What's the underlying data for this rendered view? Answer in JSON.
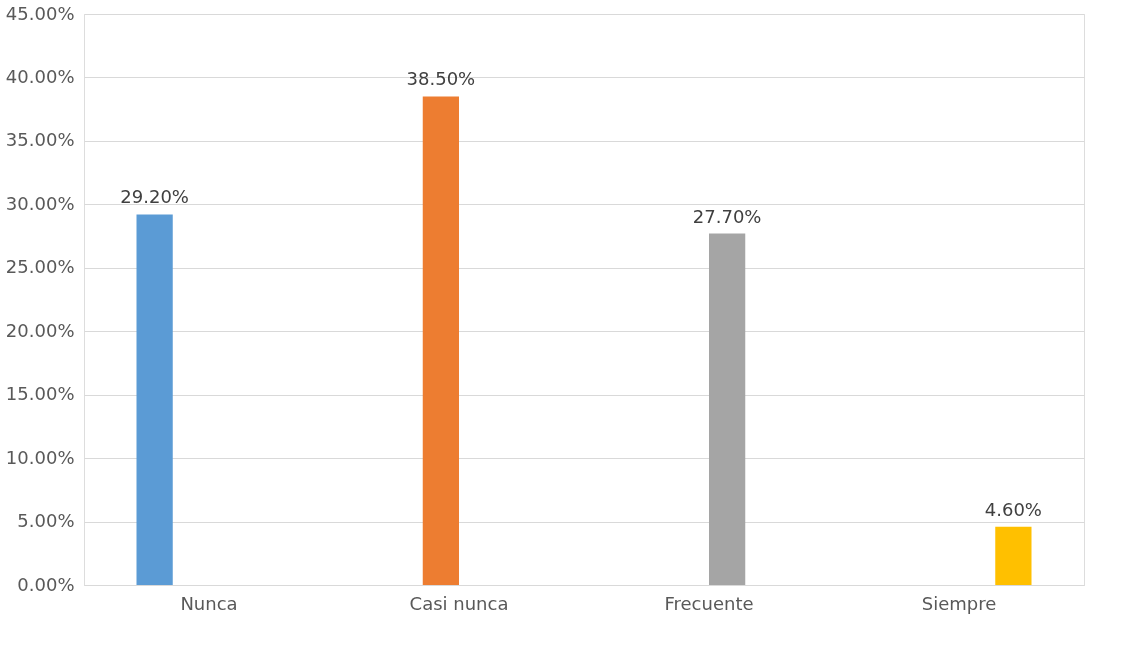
{
  "chart_data": {
    "type": "bar",
    "categories": [
      "Nunca",
      "Casi nunca",
      "Frecuente",
      "Siempre"
    ],
    "series": [
      {
        "color": "#5b9bd5",
        "values": [
          29.2,
          null,
          null,
          null
        ],
        "value_labels": [
          "29.20%",
          null,
          null,
          null
        ]
      },
      {
        "color": "#ed7d31",
        "values": [
          null,
          38.5,
          null,
          null
        ],
        "value_labels": [
          null,
          "38.50%",
          null,
          null
        ]
      },
      {
        "color": "#a5a5a5",
        "values": [
          null,
          null,
          27.7,
          null
        ],
        "value_labels": [
          null,
          null,
          "27.70%",
          null
        ]
      },
      {
        "color": "#ffc000",
        "values": [
          null,
          null,
          null,
          4.6
        ],
        "value_labels": [
          null,
          null,
          null,
          "4.60%"
        ]
      }
    ],
    "ylim": [
      0,
      45
    ],
    "yticks": [
      {
        "value": 0,
        "label": "0.00%"
      },
      {
        "value": 5,
        "label": "5.00%"
      },
      {
        "value": 10,
        "label": "10.00%"
      },
      {
        "value": 15,
        "label": "15.00%"
      },
      {
        "value": 20,
        "label": "20.00%"
      },
      {
        "value": 25,
        "label": "25.00%"
      },
      {
        "value": 30,
        "label": "30.00%"
      },
      {
        "value": 35,
        "label": "35.00%"
      },
      {
        "value": 40,
        "label": "40.00%"
      },
      {
        "value": 45,
        "label": "45.00%"
      }
    ],
    "grid": "y",
    "legend": false
  }
}
